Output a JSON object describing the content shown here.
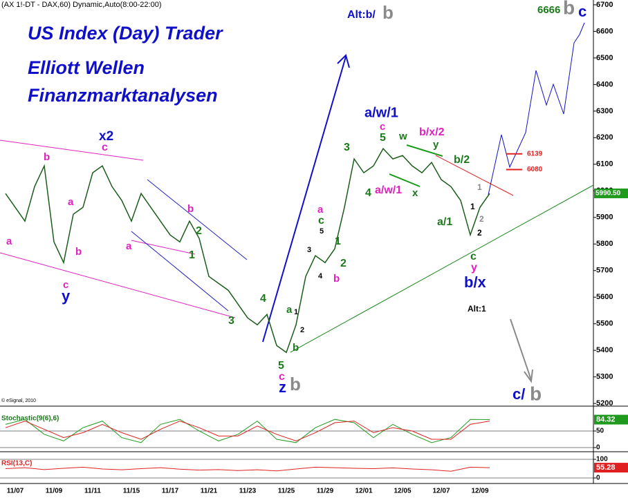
{
  "chart_data": [
    {
      "type": "line",
      "title": "(AX 1!-DT - DAX,60) Dynamic,Auto(8:00-22:00)",
      "watermark": [
        "US Index (Day) Trader",
        "Elliott Wellen",
        "Finanzmarktanalysen"
      ],
      "source": "© eSignal, 2010",
      "categories": [
        null,
        "11/07",
        null,
        null,
        null,
        "11/09",
        null,
        null,
        null,
        "11/11",
        null,
        null,
        null,
        "11/15",
        null,
        null,
        null,
        "11/17",
        null,
        null,
        null,
        "11/21",
        null,
        null,
        null,
        "11/23",
        null,
        null,
        null,
        "11/25",
        null,
        null,
        null,
        "11/29",
        null,
        null,
        null,
        "12/01",
        null,
        null,
        null,
        "12/05",
        null,
        null,
        null,
        "12/07",
        null,
        null,
        null,
        "12/09",
        null
      ],
      "series": [
        {
          "name": "DAX",
          "color": "#1a5c1a",
          "values": [
            5990,
            5938,
            5886,
            6016,
            6094,
            5808,
            5730,
            5912,
            5938,
            6068,
            6094,
            6016,
            5964,
            5886,
            5990,
            5938,
            5886,
            5834,
            5808,
            5886,
            5821,
            5678,
            5652,
            5626,
            5574,
            5522,
            5496,
            5535,
            5418,
            5392,
            5496,
            5678,
            5756,
            5730,
            5782,
            5938,
            6120,
            6068,
            6094,
            6159,
            6120,
            6133,
            6094,
            6068,
            6107,
            6042,
            6016,
            5964,
            5834,
            5938,
            5990
          ]
        }
      ],
      "ylim": [
        5190,
        6718
      ],
      "yticks": [
        5200,
        5300,
        5400,
        5500,
        5600,
        5700,
        5800,
        5900,
        6000,
        6100,
        6200,
        6300,
        6400,
        6500,
        6600,
        6700
      ],
      "last_value": {
        "value": 5990.5,
        "label": "5990.50"
      },
      "last_value_color": "#1f9a1f",
      "levels": [
        6139,
        6080
      ],
      "levels_color": "#e02020",
      "annotations": [
        {
          "text": "Alt:b/",
          "color": "#1010c8"
        },
        {
          "text": "b",
          "color": "#8a8a8a"
        },
        {
          "text": "6666",
          "color": "#1a7a1a"
        },
        {
          "text": "b",
          "color": "#8a8a8a"
        },
        {
          "text": "c",
          "color": "#1010c8"
        },
        {
          "text": "x2",
          "color": "#1010c8"
        },
        {
          "text": "c",
          "color": "#e020c0"
        },
        {
          "text": "b",
          "color": "#e020c0"
        },
        {
          "text": "a",
          "color": "#e020c0"
        },
        {
          "text": "a",
          "color": "#e020c0"
        },
        {
          "text": "b",
          "color": "#e020c0"
        },
        {
          "text": "c",
          "color": "#e020c0"
        },
        {
          "text": "y",
          "color": "#1010c8"
        },
        {
          "text": "b",
          "color": "#e020c0"
        },
        {
          "text": "2",
          "color": "#1a7a1a"
        },
        {
          "text": "a",
          "color": "#e020c0"
        },
        {
          "text": "1",
          "color": "#1a7a1a"
        },
        {
          "text": "3",
          "color": "#1a7a1a"
        },
        {
          "text": "4",
          "color": "#1a7a1a"
        },
        {
          "text": "5",
          "color": "#1a7a1a"
        },
        {
          "text": "c",
          "color": "#e020c0"
        },
        {
          "text": "z",
          "color": "#1010c8"
        },
        {
          "text": "b",
          "color": "#8a8a8a"
        },
        {
          "text": "a",
          "color": "#1a7a1a"
        },
        {
          "text": "1",
          "color": "#000000"
        },
        {
          "text": "2",
          "color": "#000000"
        },
        {
          "text": "b",
          "color": "#1a7a1a"
        },
        {
          "text": "a",
          "color": "#e020c0"
        },
        {
          "text": "c",
          "color": "#1a7a1a"
        },
        {
          "text": "5",
          "color": "#000000"
        },
        {
          "text": "3",
          "color": "#000000"
        },
        {
          "text": "4",
          "color": "#000000"
        },
        {
          "text": "1",
          "color": "#1a7a1a"
        },
        {
          "text": "2",
          "color": "#1a7a1a"
        },
        {
          "text": "b",
          "color": "#e020c0"
        },
        {
          "text": "3",
          "color": "#1a7a1a"
        },
        {
          "text": "a/w/1",
          "color": "#1010c8"
        },
        {
          "text": "c",
          "color": "#e020c0"
        },
        {
          "text": "5",
          "color": "#1a7a1a"
        },
        {
          "text": "4",
          "color": "#1a7a1a"
        },
        {
          "text": "a/w/1",
          "color": "#e020c0"
        },
        {
          "text": "x",
          "color": "#1a7a1a"
        },
        {
          "text": "w",
          "color": "#1a7a1a"
        },
        {
          "text": "y",
          "color": "#1a7a1a"
        },
        {
          "text": "b/x/2",
          "color": "#e020c0"
        },
        {
          "text": "b/2",
          "color": "#1a7a1a"
        },
        {
          "text": "a/1",
          "color": "#1a7a1a"
        },
        {
          "text": "1",
          "color": "#8a8a8a"
        },
        {
          "text": "1",
          "color": "#000000"
        },
        {
          "text": "2",
          "color": "#8a8a8a"
        },
        {
          "text": "2",
          "color": "#000000"
        },
        {
          "text": "c",
          "color": "#1a7a1a"
        },
        {
          "text": "y",
          "color": "#e020c0"
        },
        {
          "text": "b/x",
          "color": "#1010c8"
        },
        {
          "text": "Alt:1",
          "color": "#000000"
        },
        {
          "text": "c/",
          "color": "#1010c8"
        },
        {
          "text": "b",
          "color": "#8a8a8a"
        }
      ]
    },
    {
      "type": "line",
      "title": "Stochastic(9(6),6)",
      "x": [
        0,
        2,
        4,
        6,
        8,
        10,
        12,
        14,
        16,
        18,
        20,
        22,
        24,
        26,
        28,
        30,
        32,
        34,
        36,
        38,
        40,
        42,
        44,
        46,
        48,
        50
      ],
      "series": [
        {
          "name": "%K",
          "color": "#1f9a1f",
          "values": [
            70,
            85,
            40,
            20,
            60,
            80,
            30,
            15,
            70,
            85,
            50,
            20,
            40,
            80,
            25,
            15,
            60,
            85,
            75,
            30,
            70,
            40,
            15,
            30,
            85,
            84.32
          ]
        },
        {
          "name": "%D",
          "color": "#e02020",
          "values": [
            60,
            80,
            55,
            30,
            45,
            70,
            45,
            25,
            55,
            80,
            60,
            35,
            35,
            65,
            40,
            20,
            45,
            75,
            80,
            45,
            60,
            50,
            25,
            25,
            70,
            80
          ]
        }
      ],
      "ylim": [
        0,
        100
      ],
      "yticks": [
        0,
        50
      ]
    },
    {
      "type": "line",
      "title": "RSI(13,C)",
      "x": [
        0,
        2,
        4,
        6,
        8,
        10,
        12,
        14,
        16,
        18,
        20,
        22,
        24,
        26,
        28,
        30,
        32,
        34,
        36,
        38,
        40,
        42,
        44,
        46,
        48,
        50
      ],
      "series": [
        {
          "name": "RSI",
          "color": "#e02020",
          "values": [
            50,
            55,
            45,
            52,
            58,
            48,
            44,
            50,
            55,
            47,
            42,
            45,
            40,
            44,
            38,
            48,
            58,
            55,
            52,
            50,
            54,
            48,
            44,
            36,
            58,
            55.28
          ]
        }
      ],
      "ylim": [
        0,
        100
      ],
      "yticks": [
        0,
        100
      ]
    }
  ]
}
